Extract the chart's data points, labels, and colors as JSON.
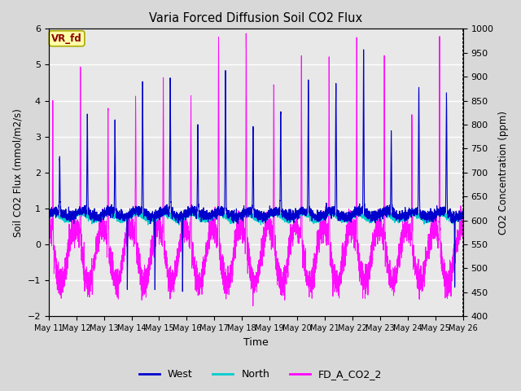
{
  "title": "Varia Forced Diffusion Soil CO2 Flux",
  "xlabel": "Time",
  "ylabel_left": "Soil CO2 Flux (mmol/m2/s)",
  "ylabel_right": "CO2 Concentration (ppm)",
  "ylim_left": [
    -2.0,
    6.0
  ],
  "ylim_right": [
    400,
    1000
  ],
  "yticks_left": [
    -2.0,
    -1.0,
    0.0,
    1.0,
    2.0,
    3.0,
    4.0,
    5.0,
    6.0
  ],
  "yticks_right": [
    400,
    450,
    500,
    550,
    600,
    650,
    700,
    750,
    800,
    850,
    900,
    950,
    1000
  ],
  "color_west": "#0000CC",
  "color_north": "#00CCCC",
  "color_co2": "#FF00FF",
  "legend_label_west": "West",
  "legend_label_north": "North",
  "legend_label_co2": "FD_A_CO2_2",
  "vr_fd_box_color": "#FFFFAA",
  "vr_fd_text_color": "#8B0000",
  "vr_fd_edge_color": "#AAAA00",
  "fig_bg_color": "#D8D8D8",
  "plot_bg_color": "#E8E8E8",
  "grid_color": "#FFFFFF",
  "n_points": 4320,
  "seed": 42
}
